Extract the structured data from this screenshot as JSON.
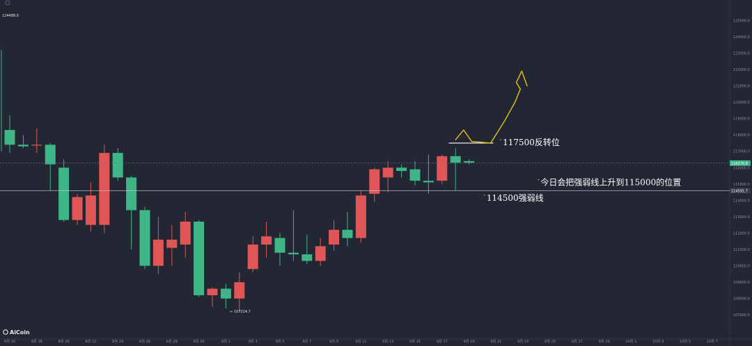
{
  "chart_data": {
    "type": "candlestick",
    "ylim": [
      106500,
      125800
    ],
    "y_ticks": [
      125000,
      124000,
      123000,
      122000,
      121000,
      120000,
      119000,
      118000,
      117000,
      116000,
      115000,
      114000,
      113000,
      112000,
      111000,
      110000,
      109000,
      108000,
      107000
    ],
    "y_tick_labels": [
      "125000.0",
      "124000.0",
      "123000.0",
      "122000.0",
      "121000.0",
      "120000.0",
      "119000.0",
      "118000.0",
      "117000.0",
      "116000.0",
      "115000.0",
      "114000.0",
      "113000.0",
      "112000.0",
      "111000.0",
      "110000.0",
      "109000.0",
      "108000.0",
      "107000.0"
    ],
    "x_labels": [
      {
        "day": 0,
        "label": "8月 16"
      },
      {
        "day": 2,
        "label": "8月 18"
      },
      {
        "day": 4,
        "label": "8月 20"
      },
      {
        "day": 6,
        "label": "8月 22"
      },
      {
        "day": 8,
        "label": "8月 24"
      },
      {
        "day": 10,
        "label": "8月 26"
      },
      {
        "day": 12,
        "label": "8月 28"
      },
      {
        "day": 14,
        "label": "8月 30"
      },
      {
        "day": 16,
        "label": "9月 1"
      },
      {
        "day": 18,
        "label": "9月 3"
      },
      {
        "day": 20,
        "label": "9月 5"
      },
      {
        "day": 22,
        "label": "9月 7"
      },
      {
        "day": 24,
        "label": "9月 9"
      },
      {
        "day": 26,
        "label": "9月 11"
      },
      {
        "day": 28,
        "label": "9月 13"
      },
      {
        "day": 30,
        "label": "9月 15"
      },
      {
        "day": 32,
        "label": "9月 17"
      },
      {
        "day": 34,
        "label": "9月 19"
      },
      {
        "day": 36,
        "label": "9月 21"
      },
      {
        "day": 38,
        "label": "9月 23"
      },
      {
        "day": 40,
        "label": "9月 25"
      },
      {
        "day": 42,
        "label": "9月 27"
      },
      {
        "day": 44,
        "label": "9月 29"
      },
      {
        "day": 46,
        "label": "10月 1"
      },
      {
        "day": 48,
        "label": "10月 3"
      },
      {
        "day": 50,
        "label": "10月 5"
      },
      {
        "day": 52,
        "label": "10月 7"
      }
    ],
    "candles": [
      {
        "o": 118300,
        "h": 119200,
        "l": 116900,
        "c": 117400
      },
      {
        "o": 117400,
        "h": 118000,
        "l": 117200,
        "c": 117300
      },
      {
        "o": 117350,
        "h": 118400,
        "l": 116900,
        "c": 117400
      },
      {
        "o": 117400,
        "h": 117500,
        "l": 114600,
        "c": 116200
      },
      {
        "o": 116000,
        "h": 116500,
        "l": 112700,
        "c": 112800
      },
      {
        "o": 112800,
        "h": 114400,
        "l": 112500,
        "c": 114200
      },
      {
        "o": 112500,
        "h": 115100,
        "l": 112100,
        "c": 114300
      },
      {
        "o": 112500,
        "h": 117400,
        "l": 112000,
        "c": 116900
      },
      {
        "o": 116900,
        "h": 117200,
        "l": 115200,
        "c": 115400
      },
      {
        "o": 115400,
        "h": 115500,
        "l": 111000,
        "c": 113400
      },
      {
        "o": 113400,
        "h": 113600,
        "l": 109800,
        "c": 110000
      },
      {
        "o": 110000,
        "h": 113000,
        "l": 109500,
        "c": 111600
      },
      {
        "o": 111100,
        "h": 112500,
        "l": 110000,
        "c": 111600
      },
      {
        "o": 111300,
        "h": 113300,
        "l": 110500,
        "c": 112700
      },
      {
        "o": 112700,
        "h": 112800,
        "l": 108100,
        "c": 108200
      },
      {
        "o": 108200,
        "h": 108700,
        "l": 107500,
        "c": 108600
      },
      {
        "o": 108600,
        "h": 108900,
        "l": 107400,
        "c": 108000
      },
      {
        "o": 108000,
        "h": 109600,
        "l": 107200,
        "c": 109000
      },
      {
        "o": 109800,
        "h": 111800,
        "l": 109600,
        "c": 111300
      },
      {
        "o": 111300,
        "h": 112700,
        "l": 110500,
        "c": 111800
      },
      {
        "o": 111700,
        "h": 112000,
        "l": 110000,
        "c": 110800
      },
      {
        "o": 110800,
        "h": 113400,
        "l": 110300,
        "c": 110700
      },
      {
        "o": 110700,
        "h": 111900,
        "l": 110100,
        "c": 110300
      },
      {
        "o": 110300,
        "h": 111700,
        "l": 110000,
        "c": 111200
      },
      {
        "o": 111300,
        "h": 112800,
        "l": 110900,
        "c": 112200
      },
      {
        "o": 112200,
        "h": 113300,
        "l": 111200,
        "c": 111700
      },
      {
        "o": 111700,
        "h": 114600,
        "l": 111400,
        "c": 114300
      },
      {
        "o": 114400,
        "h": 116000,
        "l": 113900,
        "c": 115900
      },
      {
        "o": 115400,
        "h": 116400,
        "l": 114500,
        "c": 116000
      },
      {
        "o": 116000,
        "h": 116200,
        "l": 115400,
        "c": 115800
      },
      {
        "o": 115900,
        "h": 116400,
        "l": 114900,
        "c": 115200
      },
      {
        "o": 115200,
        "h": 116800,
        "l": 114400,
        "c": 115100
      },
      {
        "o": 115200,
        "h": 116800,
        "l": 115000,
        "c": 116700
      },
      {
        "o": 116700,
        "h": 117200,
        "l": 114600,
        "c": 116300
      },
      {
        "o": 116400,
        "h": 116500,
        "l": 116200,
        "c": 116300
      }
    ],
    "first_day": 0,
    "high_marker": "124488.0",
    "low_marker": "← 107214.7",
    "low_marker_value": 107214.7,
    "low_marker_day": 16.3,
    "current_price": {
      "value": 116276.8,
      "label": "116276.8"
    },
    "level_line": {
      "value": 114591.7,
      "label": "114591.7"
    },
    "annotations": [
      {
        "text": "117500反转位",
        "day": 36.5,
        "value": 117500,
        "line_from_day": 32.5,
        "line_to_day": 35.8
      },
      {
        "text": "今日会把强弱线上升到115000的位置",
        "day": 39.3,
        "value": 115050
      },
      {
        "text": "114500强弱线",
        "day": 35.3,
        "value": 114100
      }
    ],
    "forecast_path": [
      [
        33.0,
        117700
      ],
      [
        33.6,
        118300
      ],
      [
        34.2,
        117600
      ],
      [
        35.6,
        117500
      ],
      [
        36.6,
        118800
      ],
      [
        37.4,
        120000
      ],
      [
        37.8,
        120800
      ],
      [
        37.5,
        121200
      ],
      [
        37.9,
        121900
      ],
      [
        38.3,
        121000
      ]
    ],
    "colors": {
      "up": "#e05555",
      "down": "#3fb688",
      "background": "#232734",
      "annotation": "#ffffff",
      "forecast": "#e8c21a",
      "current_tag": "#3fb688"
    }
  },
  "branding": {
    "logo": "AiCoin",
    "icon": "aicoin-logo-icon"
  }
}
